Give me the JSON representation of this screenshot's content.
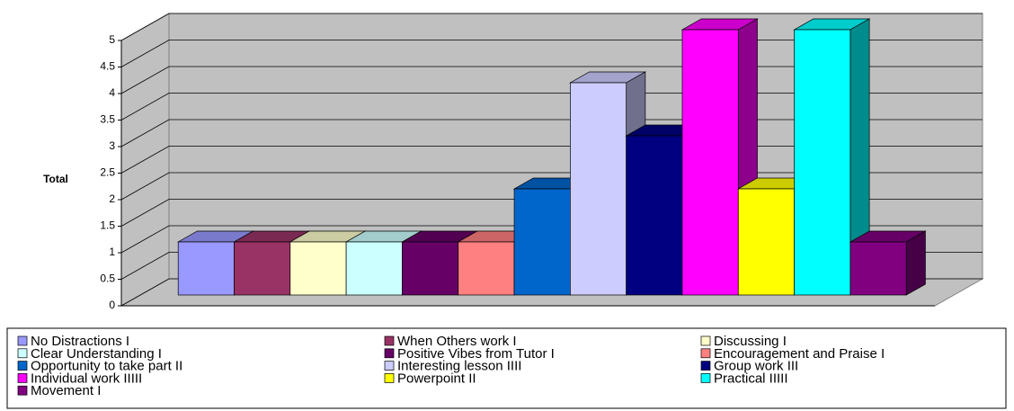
{
  "chart_data": {
    "type": "bar",
    "y_label": "Total",
    "ylim": [
      0,
      5
    ],
    "yticks": [
      0,
      0.5,
      1,
      1.5,
      2,
      2.5,
      3,
      3.5,
      4,
      4.5,
      5
    ],
    "grid": true,
    "series": [
      {
        "name": "No Distractions I",
        "color": "#9999ff",
        "values": [
          1
        ]
      },
      {
        "name": "When Others work I",
        "color": "#993366",
        "values": [
          1
        ]
      },
      {
        "name": "Discussing  I",
        "color": "#ffffcc",
        "values": [
          1
        ]
      },
      {
        "name": "Clear Understanding I",
        "color": "#ccffff",
        "values": [
          1
        ]
      },
      {
        "name": "Positive Vibes from Tutor I",
        "color": "#660066",
        "values": [
          1
        ]
      },
      {
        "name": "Encouragement and Praise I",
        "color": "#ff8080",
        "values": [
          1
        ]
      },
      {
        "name": "Opportunity to take part II",
        "color": "#0066cc",
        "values": [
          2
        ]
      },
      {
        "name": "Interesting lesson IIII",
        "color": "#ccccff",
        "values": [
          4
        ]
      },
      {
        "name": "Group work III",
        "color": "#000080",
        "values": [
          3
        ]
      },
      {
        "name": "Individual work IIIII",
        "color": "#ff00ff",
        "values": [
          5
        ]
      },
      {
        "name": "Powerpoint II",
        "color": "#ffff00",
        "values": [
          2
        ]
      },
      {
        "name": "Practical IIIII",
        "color": "#00ffff",
        "values": [
          5
        ]
      },
      {
        "name": "Movement I",
        "color": "#800080",
        "values": [
          1
        ]
      }
    ]
  }
}
